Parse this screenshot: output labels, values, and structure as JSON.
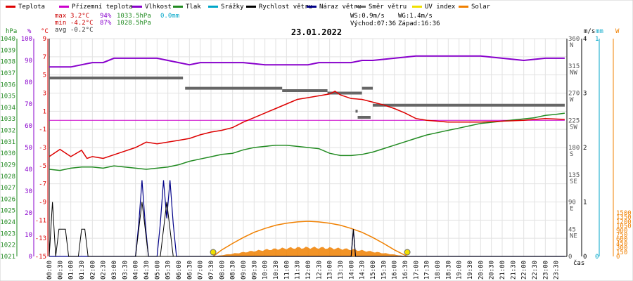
{
  "legend": [
    {
      "label": "Teplota",
      "color": "#dd0000"
    },
    {
      "label": "Přízemní teplota",
      "color": "#cc00cc"
    },
    {
      "label": "Vlhkost",
      "color": "#8800cc"
    },
    {
      "label": "Tlak",
      "color": "#228b22"
    },
    {
      "label": "Srážky",
      "color": "#00a6c8"
    },
    {
      "label": "Rychlost větru",
      "color": "#000000"
    },
    {
      "label": "Náraz větru",
      "color": "#000088"
    },
    {
      "label": "Směr větru",
      "color": "#666666"
    },
    {
      "label": "UV index",
      "color": "#f0e000"
    },
    {
      "label": "Solar",
      "color": "#f08000"
    }
  ],
  "stats": {
    "max_label": "max",
    "max_temp": "3.2°C",
    "max_hum": "94%",
    "max_press": "1033.5hPa",
    "precip": "0.0mm",
    "min_label": "min",
    "min_temp": "-4.2°C",
    "min_hum": "87%",
    "min_press": "1028.5hPa",
    "avg_label": "avg",
    "avg_temp": "-0.2°C",
    "ws": "WS:0.9m/s",
    "wg": "WG:1.4m/s",
    "sunrise": "Východ:07:36",
    "sunset": "Západ:16:36"
  },
  "chart_data": {
    "type": "line",
    "title": "23.01.2022",
    "xlabel": "čas",
    "x_ticks": [
      "00:00",
      "00:30",
      "01:00",
      "01:30",
      "02:00",
      "02:30",
      "03:00",
      "03:30",
      "04:00",
      "04:30",
      "05:00",
      "05:30",
      "06:00",
      "06:30",
      "07:00",
      "07:30",
      "08:00",
      "08:30",
      "09:00",
      "09:30",
      "10:00",
      "10:30",
      "11:00",
      "11:30",
      "12:00",
      "12:30",
      "13:00",
      "13:30",
      "14:00",
      "14:30",
      "15:00",
      "15:30",
      "16:00",
      "16:30",
      "17:00",
      "17:30",
      "18:00",
      "18:30",
      "19:00",
      "19:30",
      "20:00",
      "20:30",
      "21:00",
      "21:30",
      "22:00",
      "22:30",
      "23:00",
      "23:30"
    ],
    "axes": {
      "pressure": {
        "unit": "hPa",
        "ticks": [
          "1040",
          "1039",
          "1038",
          "1037",
          "1036",
          "1035",
          "1034",
          "1033",
          "1032",
          "1031",
          "1030",
          "1029",
          "1028",
          "1027",
          "1026",
          "1025",
          "1024",
          "1023",
          "1022",
          "1021"
        ],
        "range": [
          1021,
          1040
        ],
        "color": "#228b22"
      },
      "humidity": {
        "unit": "%",
        "ticks": [
          "100",
          "90",
          "80",
          "70",
          "60",
          "50",
          "40",
          "30",
          "20",
          "10",
          "0"
        ],
        "range": [
          0,
          100
        ],
        "color": "#8800cc"
      },
      "temperature": {
        "unit": "°C",
        "ticks": [
          "9",
          "7",
          "5",
          "3",
          "1",
          "-1",
          "-3",
          "-5",
          "-7",
          "-9",
          "-11",
          "-13",
          "-15"
        ],
        "range": [
          -15,
          9
        ],
        "color": "#dd0000"
      },
      "wind_dir": {
        "unit": "",
        "ticks": [
          "360 N",
          "315 NW",
          "270 W",
          "225 SW",
          "180 S",
          "135 SE",
          "90 E",
          "45 NE",
          "0"
        ],
        "range": [
          0,
          360
        ]
      },
      "wind_speed": {
        "unit": "m/s",
        "ticks": [
          "4",
          "3",
          "2",
          "1",
          "0"
        ],
        "range": [
          0,
          4
        ]
      },
      "precip": {
        "unit": "mm",
        "ticks": [
          "1",
          "0"
        ],
        "range": [
          0,
          1
        ],
        "color": "#00a6c8"
      },
      "solar": {
        "unit": "W",
        "ticks": [
          "1500",
          "1350",
          "1200",
          "1050",
          "900",
          "750",
          "600",
          "450",
          "300",
          "150",
          "0"
        ],
        "range": [
          0,
          1500
        ],
        "color": "#f08000"
      }
    },
    "series": [
      {
        "name": "Teplota",
        "color": "#dd0000",
        "axis": "temperature",
        "x": [
          0,
          0.5,
          1,
          1.5,
          1.75,
          2,
          2.5,
          3,
          3.5,
          4,
          4.5,
          5,
          5.5,
          6,
          6.5,
          7,
          7.5,
          8,
          8.5,
          9,
          9.5,
          10,
          10.5,
          11,
          11.5,
          12,
          12.5,
          13,
          13.25,
          13.5,
          14,
          14.5,
          15,
          15.5,
          16,
          16.5,
          17,
          17.5,
          18,
          18.5,
          19,
          20,
          21,
          22,
          23,
          23.9
        ],
        "values": [
          -4.0,
          -3.2,
          -4.0,
          -3.3,
          -4.2,
          -4.0,
          -4.2,
          -3.8,
          -3.4,
          -3.0,
          -2.4,
          -2.6,
          -2.4,
          -2.2,
          -2.0,
          -1.6,
          -1.3,
          -1.1,
          -0.8,
          -0.2,
          0.3,
          0.8,
          1.3,
          1.8,
          2.3,
          2.5,
          2.7,
          2.9,
          3.2,
          2.8,
          2.4,
          2.3,
          2.0,
          1.7,
          1.3,
          0.8,
          0.2,
          0.0,
          -0.1,
          -0.2,
          -0.2,
          -0.2,
          -0.1,
          0.0,
          0.2,
          0.1
        ]
      },
      {
        "name": "Přízemní teplota",
        "color": "#cc00cc",
        "axis": "temperature",
        "x": [
          0,
          23.9
        ],
        "values": [
          0.0,
          0.0
        ]
      },
      {
        "name": "Vlhkost",
        "color": "#8800cc",
        "axis": "humidity",
        "x": [
          0,
          1,
          1.5,
          2,
          2.5,
          3,
          4,
          5,
          5.5,
          6,
          6.5,
          7,
          8,
          9,
          10,
          11,
          12,
          12.5,
          13,
          14,
          14.5,
          15,
          16,
          17,
          18,
          19,
          20,
          21,
          22,
          23,
          23.9
        ],
        "values": [
          87,
          87,
          88,
          89,
          89,
          91,
          91,
          91,
          90,
          89,
          88,
          89,
          89,
          89,
          88,
          88,
          88,
          89,
          89,
          89,
          90,
          90,
          91,
          92,
          92,
          92,
          92,
          91,
          90,
          91,
          91
        ]
      },
      {
        "name": "Tlak",
        "color": "#228b22",
        "axis": "pressure",
        "x": [
          0,
          0.5,
          1,
          1.5,
          2,
          2.5,
          3,
          3.5,
          4,
          4.5,
          5,
          5.5,
          6,
          6.5,
          7,
          7.5,
          8,
          8.5,
          9,
          9.5,
          10,
          10.5,
          11,
          11.5,
          12,
          12.5,
          13,
          13.5,
          14,
          14.5,
          15,
          15.5,
          16,
          16.5,
          17,
          17.5,
          18,
          18.5,
          19,
          19.5,
          20,
          20.5,
          21,
          21.5,
          22,
          22.5,
          23,
          23.5,
          23.9
        ],
        "values": [
          1028.6,
          1028.5,
          1028.7,
          1028.8,
          1028.8,
          1028.7,
          1028.9,
          1028.8,
          1028.7,
          1028.6,
          1028.7,
          1028.8,
          1029.0,
          1029.3,
          1029.5,
          1029.7,
          1029.9,
          1030.0,
          1030.3,
          1030.5,
          1030.6,
          1030.7,
          1030.7,
          1030.6,
          1030.5,
          1030.4,
          1030.0,
          1029.8,
          1029.8,
          1029.9,
          1030.1,
          1030.4,
          1030.7,
          1031.0,
          1031.3,
          1031.6,
          1031.8,
          1032.0,
          1032.2,
          1032.4,
          1032.6,
          1032.7,
          1032.8,
          1032.9,
          1033.0,
          1033.1,
          1033.3,
          1033.4,
          1033.5
        ]
      },
      {
        "name": "Srážky",
        "color": "#00a6c8",
        "axis": "precip",
        "x": [
          0,
          23.9
        ],
        "values": [
          0,
          0
        ]
      },
      {
        "name": "Rychlost větru",
        "color": "#000000",
        "axis": "wind_speed",
        "x": [
          0,
          0.15,
          0.3,
          0.45,
          0.6,
          0.75,
          0.9,
          1.05,
          1.2,
          1.35,
          1.5,
          1.65,
          1.8,
          2.0,
          4.0,
          4.15,
          4.3,
          4.45,
          4.6,
          5.0,
          5.15,
          5.3,
          5.45,
          5.6,
          5.75,
          5.9,
          6.1,
          14.0,
          14.1,
          14.2,
          14.3,
          23.9
        ],
        "values": [
          0,
          1.0,
          0,
          0.5,
          0.5,
          0.5,
          0,
          0,
          0,
          0,
          0.5,
          0.5,
          0,
          0,
          0,
          0.5,
          1.0,
          0.5,
          0,
          0,
          0,
          0.5,
          1.0,
          0.5,
          0,
          0,
          0,
          0,
          0.5,
          0,
          0,
          0
        ]
      },
      {
        "name": "Náraz větru",
        "color": "#000088",
        "axis": "wind_speed",
        "x": [
          0,
          4.0,
          4.15,
          4.3,
          4.45,
          4.6,
          5.0,
          5.15,
          5.3,
          5.45,
          5.6,
          5.75,
          5.9,
          6.1,
          14.0,
          14.1,
          14.2,
          14.3,
          23.9
        ],
        "values": [
          0,
          0,
          0.6,
          1.4,
          0.6,
          0,
          0,
          0.6,
          1.4,
          0.7,
          1.4,
          0.6,
          0,
          0,
          0,
          0.5,
          0,
          0,
          0
        ]
      },
      {
        "name": "Solar",
        "color": "#f08000",
        "axis": "solar",
        "x": [
          7.6,
          8,
          8.5,
          9,
          9.5,
          10,
          10.5,
          11,
          11.5,
          12,
          12.5,
          13,
          13.5,
          14,
          14.5,
          15,
          15.5,
          16,
          16.6
        ],
        "values": [
          0,
          100,
          200,
          290,
          370,
          430,
          480,
          510,
          530,
          540,
          530,
          510,
          480,
          430,
          370,
          290,
          200,
          100,
          0
        ]
      }
    ],
    "wind_direction_segments": [
      {
        "x": [
          0,
          6.2
        ],
        "value": 295
      },
      {
        "x": [
          6.3,
          10.8
        ],
        "value": 278
      },
      {
        "x": [
          10.8,
          12.9
        ],
        "value": 274
      },
      {
        "x": [
          12.9,
          14.5
        ],
        "value": 270
      },
      {
        "x": [
          14.5,
          15.0
        ],
        "value": 278
      },
      {
        "x": [
          14.2,
          14.3
        ],
        "value": 240
      },
      {
        "x": [
          14.3,
          14.9
        ],
        "value": 230
      },
      {
        "x": [
          15.0,
          23.9
        ],
        "value": 250
      }
    ],
    "sun_markers": [
      7.6,
      16.6
    ],
    "grid": true
  }
}
